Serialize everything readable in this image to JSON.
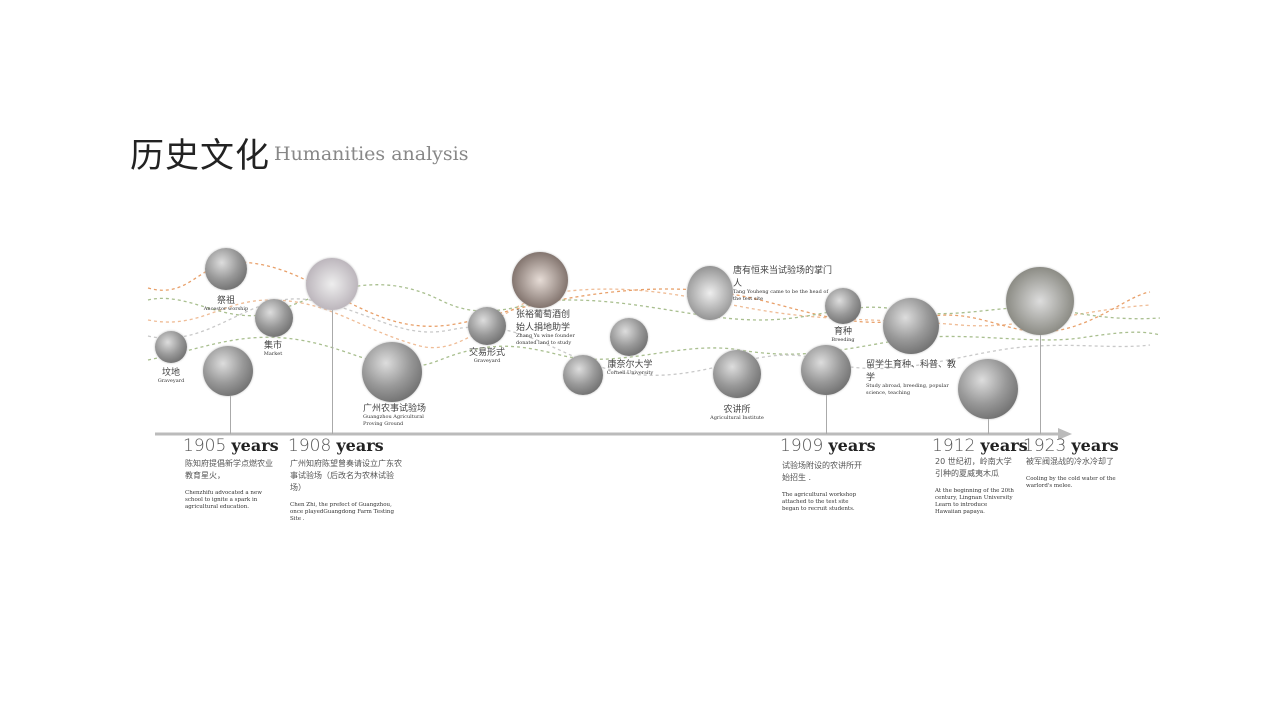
{
  "header": {
    "title_cn": "历史文化",
    "title_en": "Humanities analysis"
  },
  "colors": {
    "orange": "#e8a06a",
    "green": "#a9bf8f",
    "axis": "#bbbbbb"
  },
  "nodes": {
    "ancestor": {
      "cn": "祭祖",
      "en": "Ancestor worship"
    },
    "market": {
      "cn": "集市",
      "en": "Market"
    },
    "graveyard": {
      "cn": "坟地",
      "en": "Graveyard"
    },
    "proving": {
      "cn": "广州农事试验场",
      "en": "Guangzhou Agricultural Proving Ground"
    },
    "trade": {
      "cn": "交易形式",
      "en": "Graveyard"
    },
    "zhangyu": {
      "cn": "张裕葡萄酒创始人捐地助学",
      "en": "Zhang Yu wine founder donated land to study"
    },
    "cornell": {
      "cn": "康奈尔大学",
      "en": "Cornell University"
    },
    "tang": {
      "cn": "唐有恒来当试验场的掌门人",
      "en": "Tang Youheng came to be the head of the test site"
    },
    "breeding": {
      "cn": "育种",
      "en": "Breeding"
    },
    "institute": {
      "cn": "农讲所",
      "en": "Agricultural Institute"
    },
    "abroad": {
      "cn": "留学生育种、科普、教学",
      "en": "Study abroad, breeding, popular science, teaching"
    }
  },
  "timeline": [
    {
      "year": "1905",
      "unit": "years",
      "cn": "陈知府提倡新学点燃农业教育星火，",
      "en": "Chenzhifu advocated a new school to ignite a spark in agricultural education."
    },
    {
      "year": "1908",
      "unit": "years",
      "cn": "广州知府陈望曾奏请设立广东农事试验场（后改名为农林试验场）",
      "en": "Chen Zhi, the prefect of Guangzhou, once playedGuangdong Farm Testing Site ."
    },
    {
      "year": "1909",
      "unit": "years",
      "cn": "试验场附设的农讲所开始招生 .",
      "en": "The agricultural workshop attached to the test site began to recruit students."
    },
    {
      "year": "1912",
      "unit": "years",
      "cn": "20 世纪初，岭南大学引种的夏威夷木瓜",
      "en": "At the beginning of the 20th century, Lingnan University Learn to introduce Hawaiian papaya."
    },
    {
      "year": "1923",
      "unit": "years",
      "cn": "被军阀混战的冷水冷却了",
      "en": "Cooling by the cold water of the warlord's melee."
    }
  ]
}
